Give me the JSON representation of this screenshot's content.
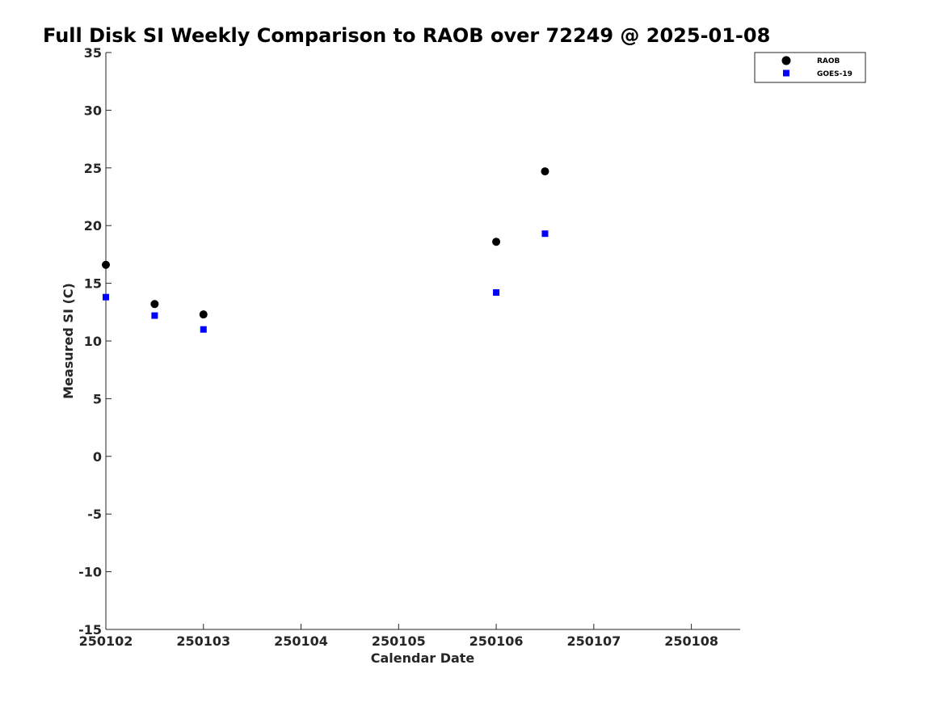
{
  "chart_data": {
    "type": "scatter",
    "title": "Full Disk SI Weekly Comparison to RAOB over 72249 @ 2025-01-08",
    "xlabel": "Calendar Date",
    "ylabel": "Measured SI (C)",
    "xlim": [
      250102,
      250108.5
    ],
    "ylim": [
      -15,
      35
    ],
    "xticks": [
      250102,
      250103,
      250104,
      250105,
      250106,
      250107,
      250108
    ],
    "xtick_labels": [
      "250102",
      "250103",
      "250104",
      "250105",
      "250106",
      "250107",
      "250108"
    ],
    "yticks": [
      -15,
      -10,
      -5,
      0,
      5,
      10,
      15,
      20,
      25,
      30,
      35
    ],
    "ytick_labels": [
      "-15",
      "-10",
      "-5",
      "0",
      "5",
      "10",
      "15",
      "20",
      "25",
      "30",
      "35"
    ],
    "grid": false,
    "legend_position": "top-right",
    "series": [
      {
        "name": "RAOB",
        "marker": "circle",
        "color": "#000000",
        "x": [
          250102,
          250102.5,
          250103,
          250106,
          250106.5
        ],
        "y": [
          16.6,
          13.2,
          12.3,
          18.6,
          24.7
        ]
      },
      {
        "name": "GOES-19",
        "marker": "square",
        "color": "#0000ff",
        "x": [
          250102,
          250102.5,
          250103,
          250106,
          250106.5
        ],
        "y": [
          13.8,
          12.2,
          11.0,
          14.2,
          19.3
        ]
      }
    ]
  }
}
